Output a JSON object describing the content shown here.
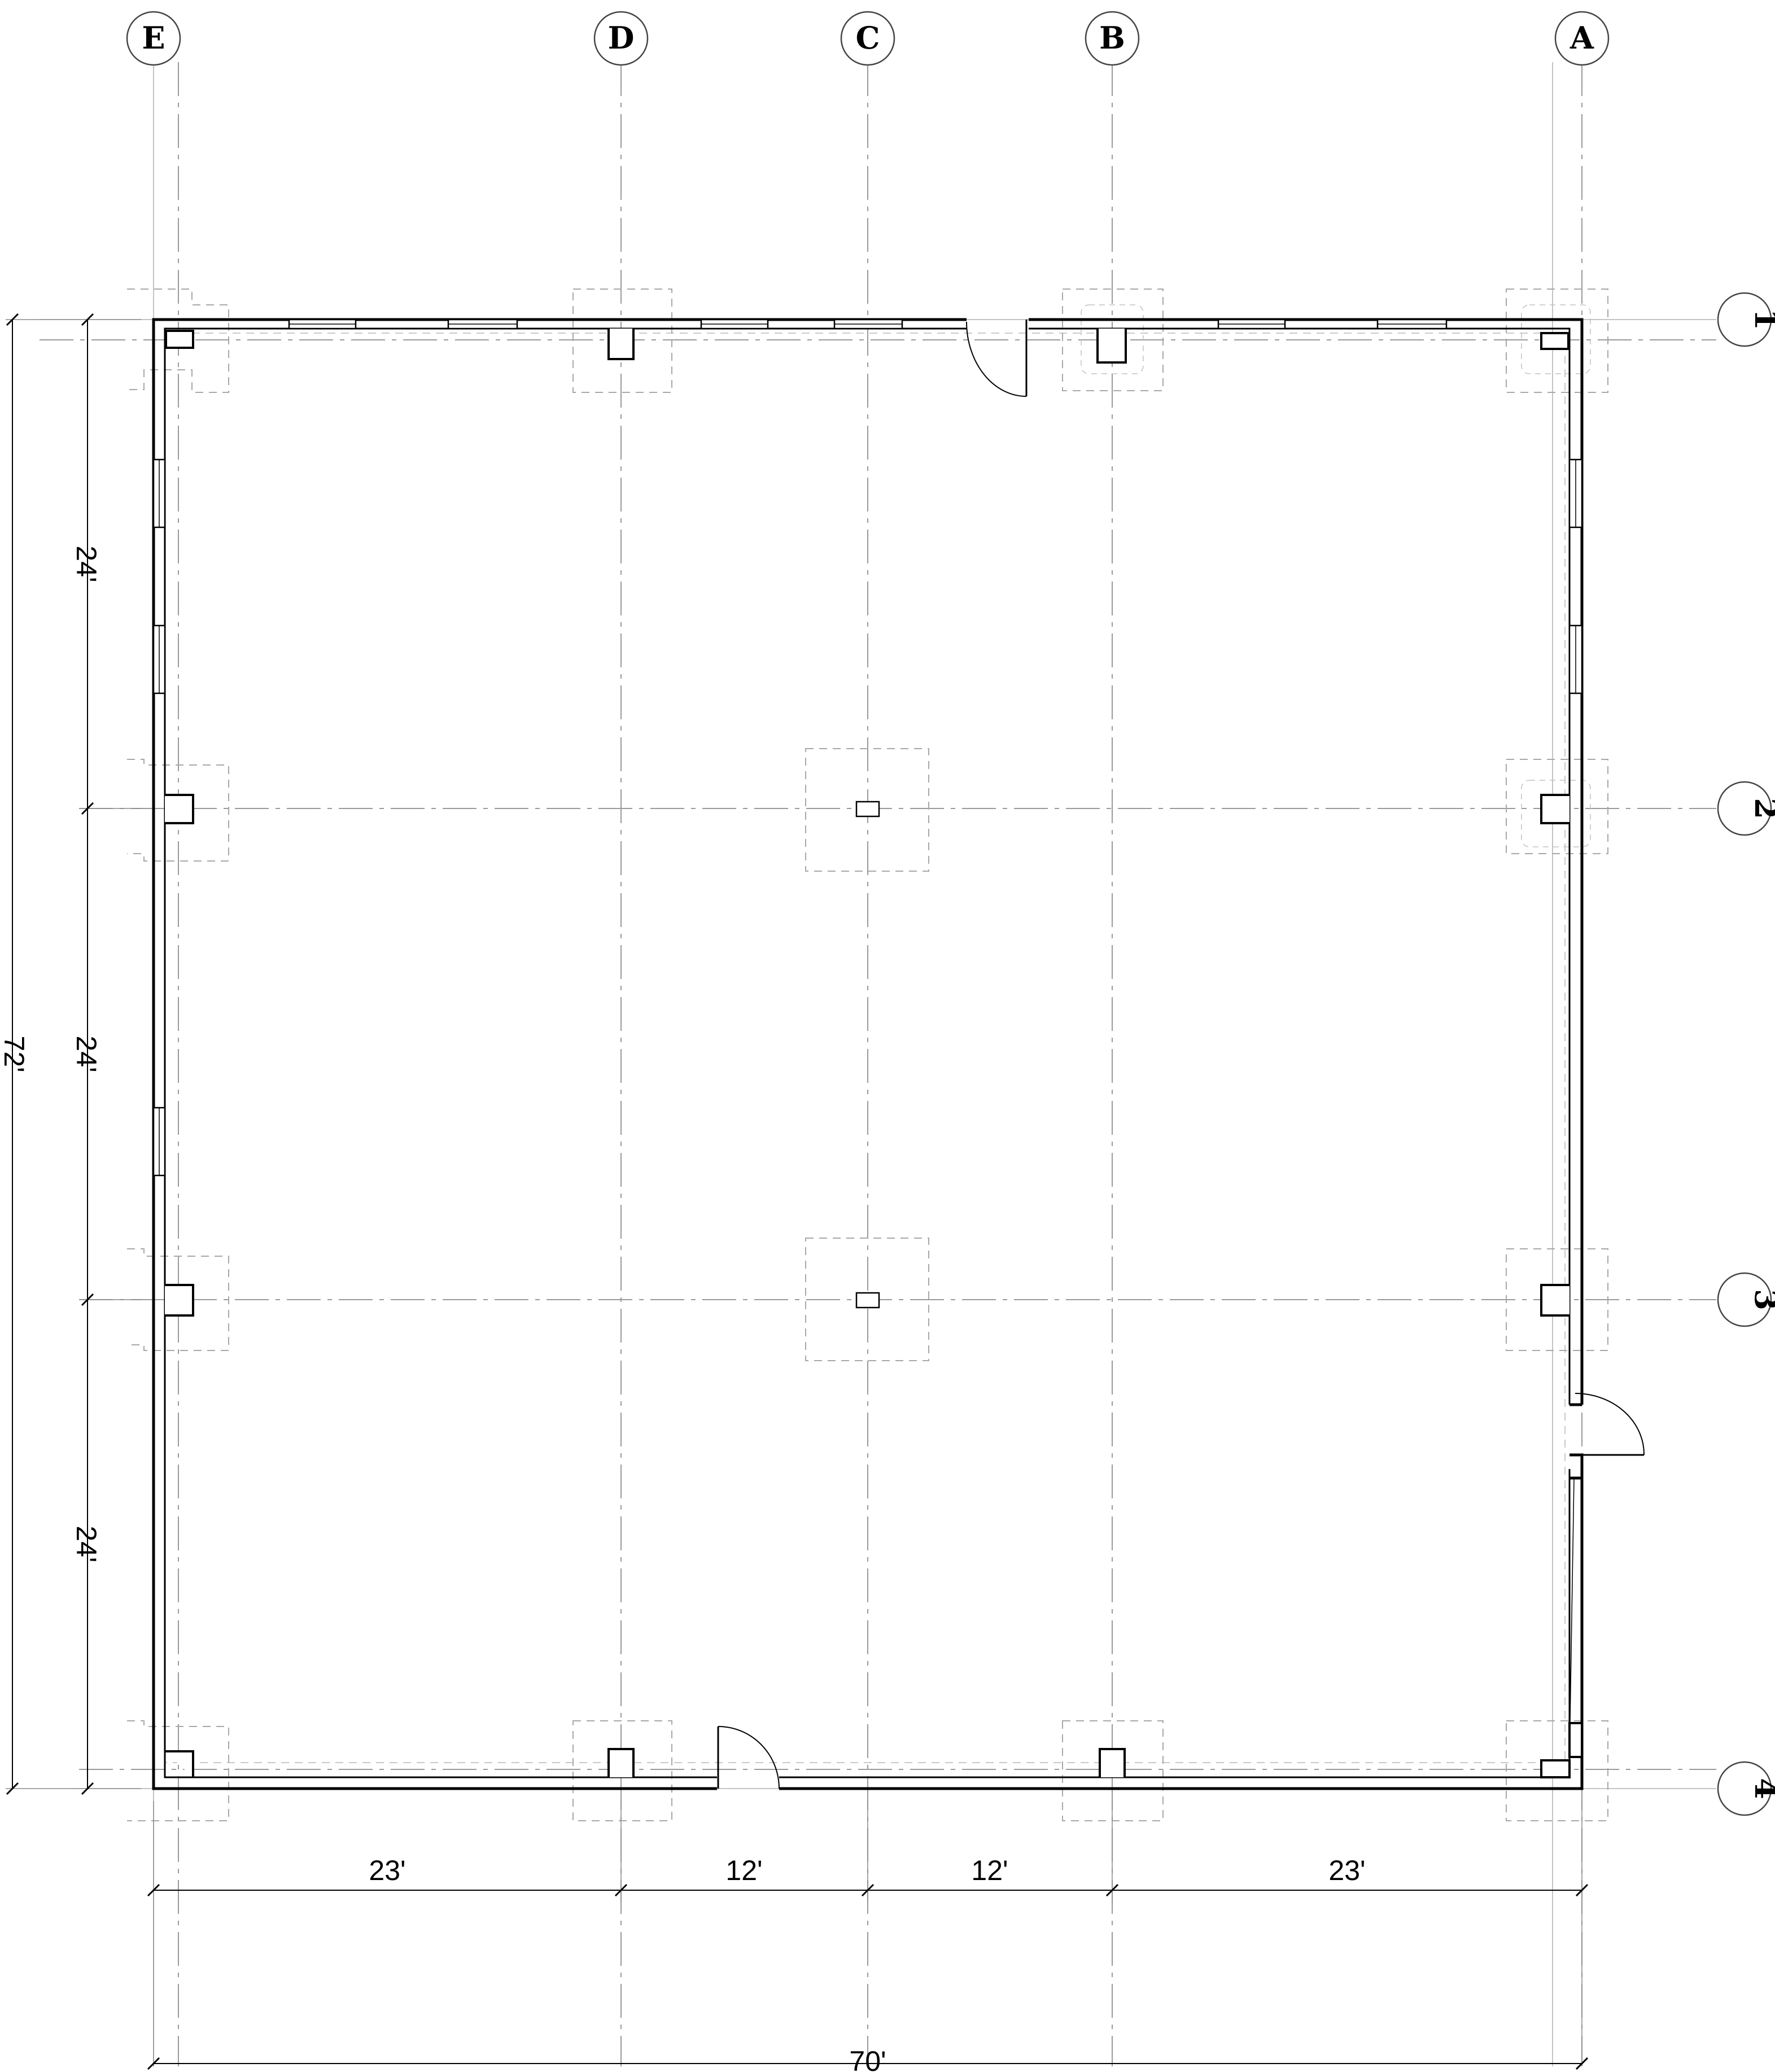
{
  "grid": {
    "columns": [
      "E",
      "D",
      "C",
      "B",
      "A"
    ],
    "rows": [
      "1",
      "2",
      "3",
      "4"
    ]
  },
  "dimensions": {
    "horizontal_segments": [
      "23'",
      "12'",
      "12'",
      "23'"
    ],
    "horizontal_overall": "70'",
    "vertical_segments": [
      "24'",
      "24'",
      "24'"
    ],
    "vertical_overall": "72'"
  },
  "colors": {
    "wall": "#000000",
    "grid": "#9a9a9a",
    "footing": "#a8a8a8"
  }
}
